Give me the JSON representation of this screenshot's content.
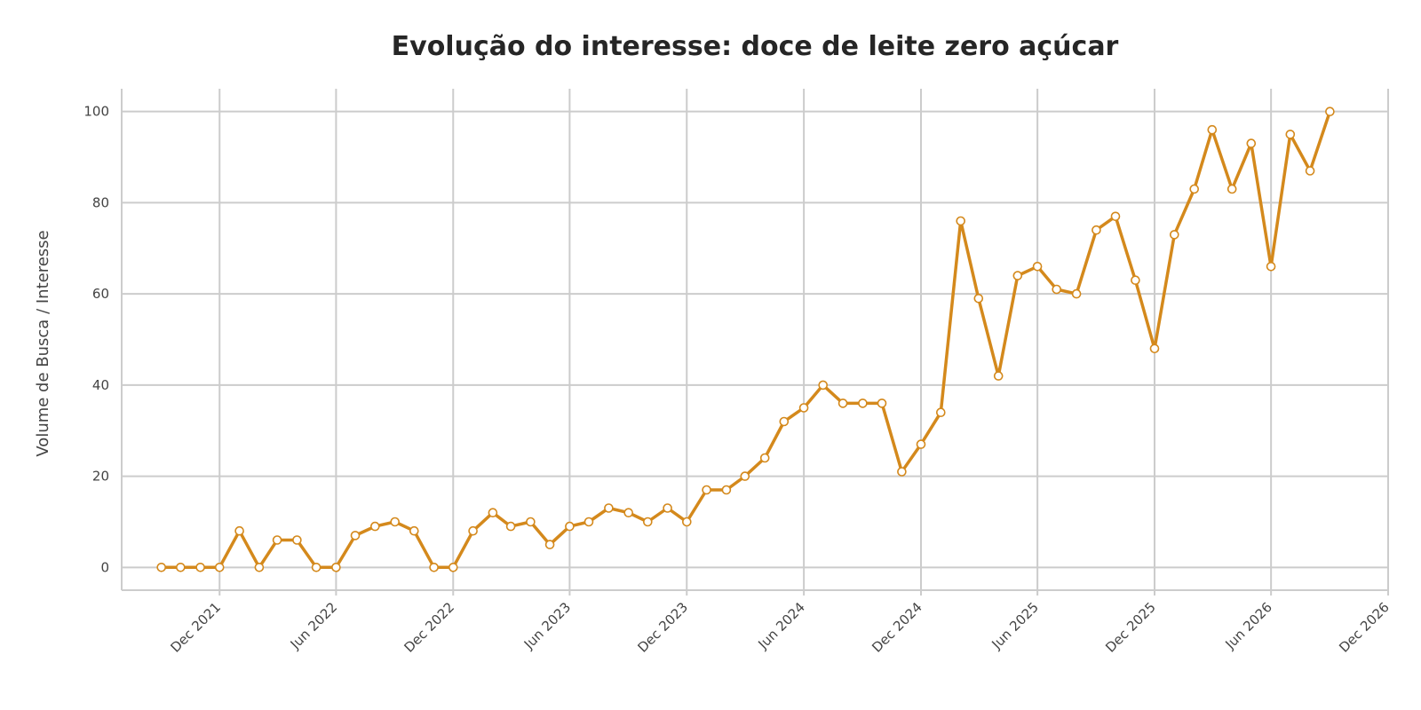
{
  "chart_data": {
    "type": "line",
    "title": "Evolução do interesse: doce de leite zero açúcar",
    "xlabel": "",
    "ylabel": "Volume de Busca / Interesse",
    "ylim": [
      -5,
      105
    ],
    "xlim": [
      "2021-07-01",
      "2026-12-01"
    ],
    "yticks": [
      0,
      20,
      40,
      60,
      80,
      100
    ],
    "xticks": [
      {
        "date": "2021-12-01",
        "label": "Dec 2021"
      },
      {
        "date": "2022-06-01",
        "label": "Jun 2022"
      },
      {
        "date": "2022-12-01",
        "label": "Dec 2022"
      },
      {
        "date": "2023-06-01",
        "label": "Jun 2023"
      },
      {
        "date": "2023-12-01",
        "label": "Dec 2023"
      },
      {
        "date": "2024-06-01",
        "label": "Jun 2024"
      },
      {
        "date": "2024-12-01",
        "label": "Dec 2024"
      },
      {
        "date": "2025-06-01",
        "label": "Jun 2025"
      },
      {
        "date": "2025-12-01",
        "label": "Dec 2025"
      },
      {
        "date": "2026-06-01",
        "label": "Jun 2026"
      },
      {
        "date": "2026-12-01",
        "label": "Dec 2026"
      }
    ],
    "grid": true,
    "legend": "none",
    "line_color": "#d4891c",
    "marker_fill": "#ffffff",
    "x": [
      "2021-09",
      "2021-10",
      "2021-11",
      "2021-12",
      "2022-01",
      "2022-02",
      "2022-03",
      "2022-04",
      "2022-05",
      "2022-06",
      "2022-07",
      "2022-08",
      "2022-09",
      "2022-10",
      "2022-11",
      "2022-12",
      "2023-01",
      "2023-02",
      "2023-03",
      "2023-04",
      "2023-05",
      "2023-06",
      "2023-07",
      "2023-08",
      "2023-09",
      "2023-10",
      "2023-11",
      "2023-12",
      "2024-01",
      "2024-02",
      "2024-03",
      "2024-04",
      "2024-05",
      "2024-06",
      "2024-07",
      "2024-08",
      "2024-09",
      "2024-10",
      "2024-11",
      "2024-12",
      "2025-01",
      "2025-02",
      "2025-03",
      "2025-04",
      "2025-05",
      "2025-06",
      "2025-07",
      "2025-08",
      "2025-09",
      "2025-10",
      "2025-11",
      "2025-12",
      "2026-01",
      "2026-02",
      "2026-03",
      "2026-04",
      "2026-05",
      "2026-06",
      "2026-07",
      "2026-08",
      "2026-09"
    ],
    "series": [
      {
        "values": [
          0,
          0,
          0,
          0,
          8,
          0,
          6,
          6,
          0,
          0,
          7,
          9,
          10,
          8,
          0,
          0,
          8,
          12,
          9,
          10,
          5,
          9,
          10,
          13,
          12,
          10,
          13,
          10,
          17,
          17,
          20,
          24,
          32,
          35,
          40,
          36,
          36,
          36,
          21,
          27,
          34,
          76,
          59,
          42,
          64,
          66,
          61,
          60,
          74,
          77,
          63,
          48,
          73,
          83,
          96,
          83,
          93,
          66,
          95,
          87,
          100
        ]
      }
    ]
  }
}
